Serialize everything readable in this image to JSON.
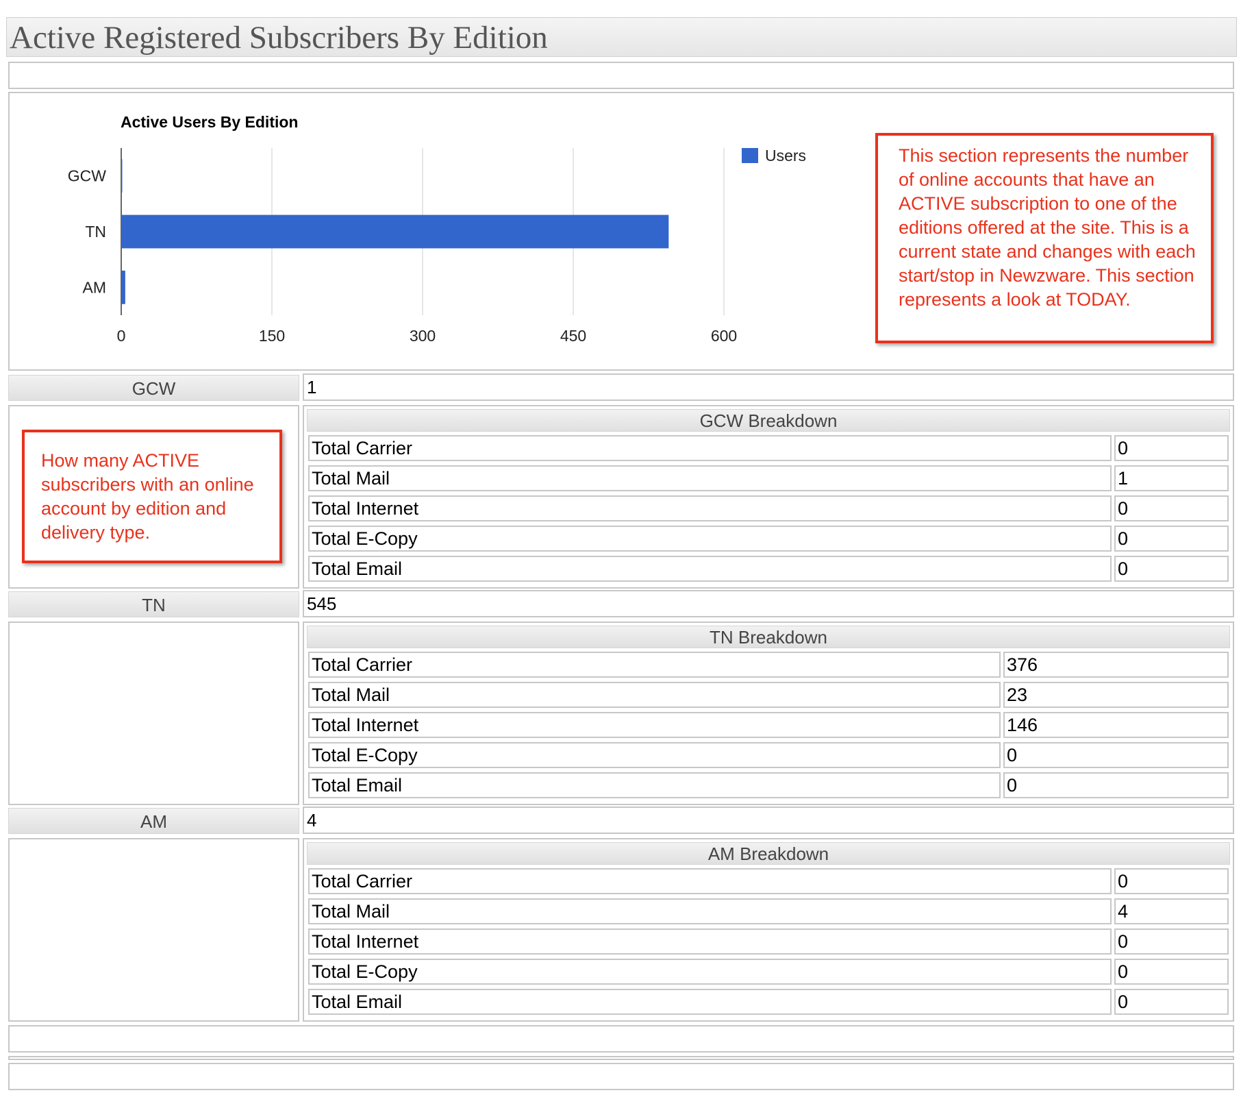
{
  "page": {
    "title": "Active Registered Subscribers By Edition"
  },
  "chart_data": {
    "type": "bar",
    "orientation": "horizontal",
    "title": "Active Users By Edition",
    "categories": [
      "GCW",
      "TN",
      "AM"
    ],
    "series": [
      {
        "name": "Users",
        "values": [
          1,
          545,
          4
        ],
        "color": "#3366cc"
      }
    ],
    "xticks": [
      "0",
      "150",
      "300",
      "450",
      "600"
    ],
    "xlim": [
      0,
      600
    ],
    "grid": true,
    "legend": "right"
  },
  "callouts": {
    "chart_note": "This section represents the number of online accounts that have an ACTIVE subscription to one of the editions offered at the site.  This is a current state and changes with each start/stop in Newzware.  This section represents a look at TODAY.",
    "breakdown_note": "How many ACTIVE subscribers with an online account by edition and delivery type."
  },
  "editions": [
    {
      "name": "GCW",
      "total": "1",
      "breakdown_title": "GCW Breakdown",
      "rows": [
        {
          "label": "Total Carrier",
          "value": "0"
        },
        {
          "label": "Total Mail",
          "value": "1"
        },
        {
          "label": "Total Internet",
          "value": "0"
        },
        {
          "label": "Total E-Copy",
          "value": "0"
        },
        {
          "label": "Total Email",
          "value": "0"
        }
      ]
    },
    {
      "name": "TN",
      "total": "545",
      "breakdown_title": "TN Breakdown",
      "rows": [
        {
          "label": "Total Carrier",
          "value": "376"
        },
        {
          "label": "Total Mail",
          "value": "23"
        },
        {
          "label": "Total Internet",
          "value": "146"
        },
        {
          "label": "Total E-Copy",
          "value": "0"
        },
        {
          "label": "Total Email",
          "value": "0"
        }
      ]
    },
    {
      "name": "AM",
      "total": "4",
      "breakdown_title": "AM Breakdown",
      "rows": [
        {
          "label": "Total Carrier",
          "value": "0"
        },
        {
          "label": "Total Mail",
          "value": "4"
        },
        {
          "label": "Total Internet",
          "value": "0"
        },
        {
          "label": "Total E-Copy",
          "value": "0"
        },
        {
          "label": "Total Email",
          "value": "0"
        }
      ]
    }
  ]
}
